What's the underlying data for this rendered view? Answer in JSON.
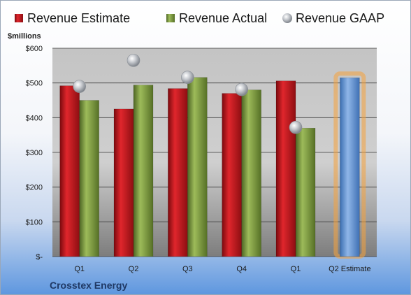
{
  "chart_data": {
    "type": "bar",
    "title": "",
    "ylabel": "$millions",
    "xlabel": "",
    "ylim": [
      0,
      600
    ],
    "yticks": [
      {
        "value": 0,
        "label": "$-"
      },
      {
        "value": 100,
        "label": "$100"
      },
      {
        "value": 200,
        "label": "$200"
      },
      {
        "value": 300,
        "label": "$300"
      },
      {
        "value": 400,
        "label": "$400"
      },
      {
        "value": 500,
        "label": "$500"
      },
      {
        "value": 600,
        "label": "$600"
      }
    ],
    "categories": [
      "Q1",
      "Q2",
      "Q3",
      "Q4",
      "Q1",
      "Q2 Estimate"
    ],
    "series": [
      {
        "name": "Revenue Estimate",
        "kind": "bar",
        "color": "#c0161c",
        "values": [
          492,
          425,
          484,
          470,
          506,
          null
        ]
      },
      {
        "name": "Revenue Actual",
        "kind": "bar",
        "color": "#7a9a3a",
        "values": [
          450,
          494,
          516,
          480,
          370,
          null
        ]
      },
      {
        "name": "Revenue GAAP",
        "kind": "marker",
        "color": "#b8bcc2",
        "values": [
          490,
          565,
          516,
          481,
          372,
          null
        ]
      }
    ],
    "highlight": {
      "category_index": 5,
      "value": 515,
      "color": "#5b8fd0",
      "glow": "#f6a23c"
    },
    "grid": true,
    "legend_position": "top",
    "footer_label": "Crosstex Energy"
  }
}
